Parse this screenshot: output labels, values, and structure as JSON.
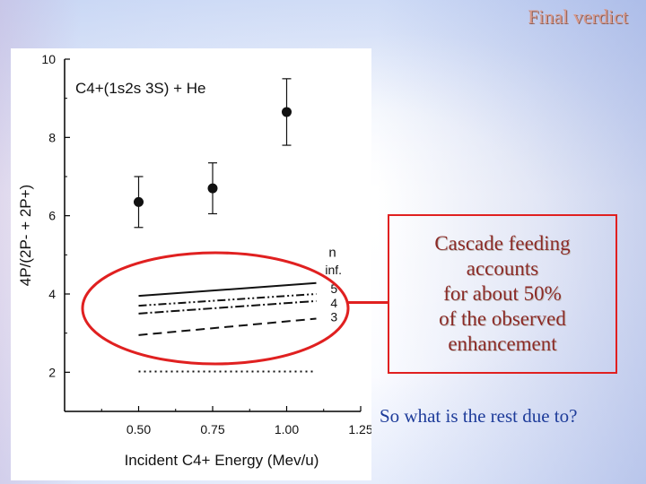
{
  "slide": {
    "title": "Final verdict",
    "callout_text": "Cascade feeding\naccounts\nfor about 50%\nof the observed\nenhancement",
    "question": "So what is the rest due to?"
  },
  "colors": {
    "title": "#d89a8c",
    "callout_text": "#8b2a26",
    "callout_border": "#e02020",
    "question": "#1e3c9a",
    "highlight_ellipse": "#e02020"
  },
  "chart_data": {
    "type": "scatter",
    "annotation": "C4+(1s2s 3S) + He",
    "xlabel": "Incident C4+ Energy (Mev/u)",
    "ylabel": "4P/(2P- + 2P+)",
    "xlim": [
      0.25,
      1.25
    ],
    "ylim": [
      1.0,
      10.0
    ],
    "xticks": [
      "0.50",
      "0.75",
      "1.00",
      "1.25"
    ],
    "yticks": [
      "2",
      "4",
      "6",
      "8",
      "10"
    ],
    "series": [
      {
        "style": "marker",
        "x": [
          0.5,
          0.75,
          1.0
        ],
        "y": [
          6.35,
          6.7,
          8.65
        ],
        "yerr_low": [
          5.7,
          6.05,
          7.8
        ],
        "yerr_high": [
          7.0,
          7.35,
          9.5
        ]
      }
    ],
    "lines": [
      {
        "label": "inf.",
        "dash": "solid",
        "x": [
          0.5,
          1.1
        ],
        "y": [
          3.95,
          4.28
        ]
      },
      {
        "label": "5",
        "dash": "dashdotdot",
        "x": [
          0.5,
          1.1
        ],
        "y": [
          3.7,
          4.0
        ]
      },
      {
        "label": "4",
        "dash": "dashdot",
        "x": [
          0.5,
          1.1
        ],
        "y": [
          3.5,
          3.82
        ]
      },
      {
        "label": "3",
        "dash": "dash",
        "x": [
          0.5,
          1.1
        ],
        "y": [
          2.95,
          3.37
        ]
      },
      {
        "label": "",
        "dash": "dot",
        "x": [
          0.5,
          1.1
        ],
        "y": [
          2.02,
          2.02
        ]
      }
    ],
    "legend_title": "n",
    "grid": false
  }
}
